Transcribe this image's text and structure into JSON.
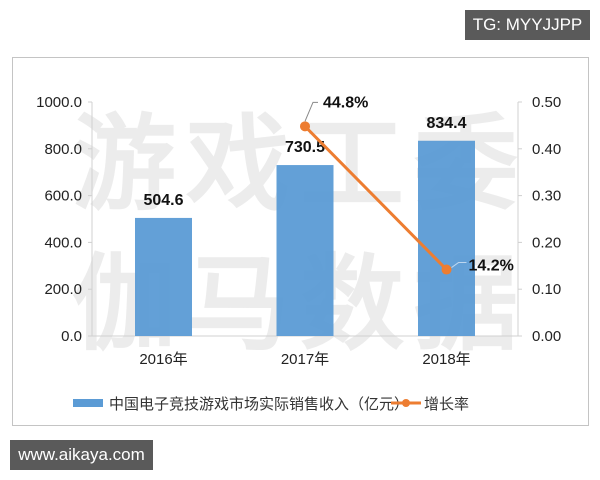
{
  "badges": {
    "top": "TG: MYYJJPP",
    "bottom": "www.aikaya.com"
  },
  "watermark": {
    "line1": "游戏工委",
    "line2": "伽马数据"
  },
  "colors": {
    "bar": "#5b9bd5",
    "line": "#ed7d31",
    "badge_bg": "#5a5a5a"
  },
  "chart_data": {
    "type": "bar+line",
    "title": "",
    "categories": [
      "2016年",
      "2017年",
      "2018年"
    ],
    "series": [
      {
        "name": "中国电子竞技游戏市场实际销售收入（亿元）",
        "type": "bar",
        "axis": "left",
        "values": [
          504.6,
          730.5,
          834.4
        ],
        "labels": [
          "504.6",
          "730.5",
          "834.4"
        ]
      },
      {
        "name": "增长率",
        "type": "line",
        "axis": "right",
        "values": [
          null,
          0.448,
          0.142
        ],
        "labels": [
          "",
          "44.8%",
          "14.2%"
        ]
      }
    ],
    "y_left": {
      "range": [
        0,
        1000
      ],
      "ticks": [
        "0.0",
        "200.0",
        "400.0",
        "600.0",
        "800.0",
        "1000.0"
      ]
    },
    "y_right": {
      "range": [
        0,
        0.5
      ],
      "ticks": [
        "0.00",
        "0.10",
        "0.20",
        "0.30",
        "0.40",
        "0.50"
      ]
    },
    "grid": false,
    "legend_position": "bottom",
    "legend": [
      {
        "label": "中国电子竞技游戏市场实际销售收入（亿元）",
        "marker": "bar"
      },
      {
        "label": "增长率",
        "marker": "line-dot"
      }
    ]
  }
}
